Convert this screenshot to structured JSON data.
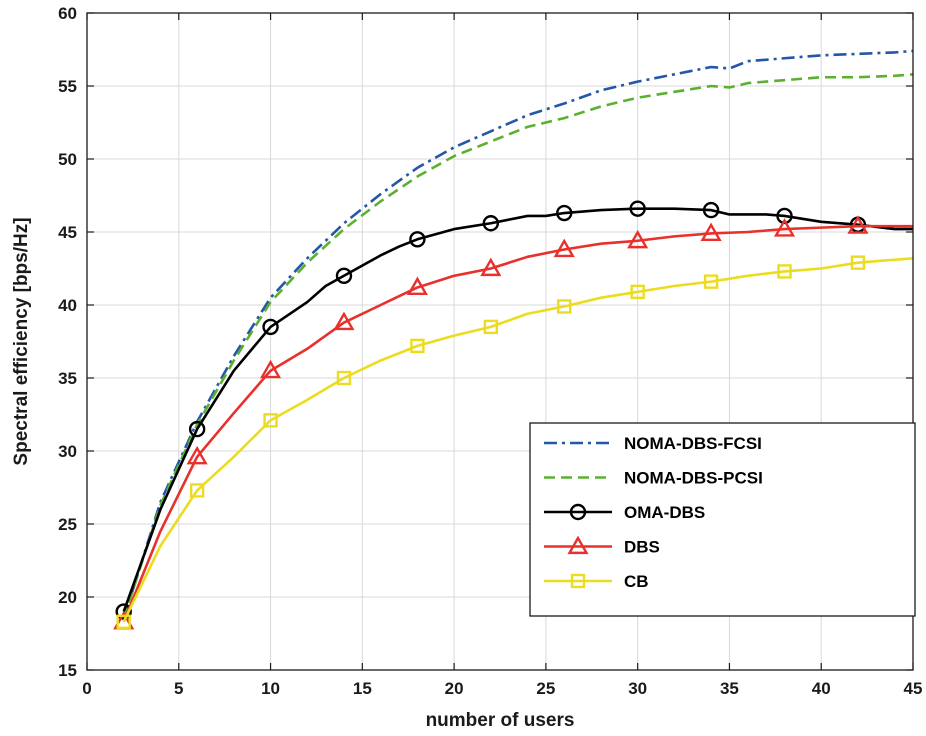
{
  "chart_data": {
    "type": "line",
    "xlabel": "number of users",
    "ylabel": "Spectral efficiency [bps/Hz]",
    "xlim": [
      0,
      45
    ],
    "ylim": [
      15,
      60
    ],
    "xticks": [
      0,
      5,
      10,
      15,
      20,
      25,
      30,
      35,
      40,
      45
    ],
    "yticks": [
      15,
      20,
      25,
      30,
      35,
      40,
      45,
      50,
      55,
      60
    ],
    "grid": true,
    "legend_position": "lower-right",
    "series": [
      {
        "name": "NOMA-DBS-FCSI",
        "color": "#2457a6",
        "dash": "dashdot",
        "marker": "none",
        "x": [
          2,
          4,
          6,
          8,
          10,
          12,
          14,
          16,
          18,
          20,
          22,
          24,
          26,
          28,
          30,
          32,
          34,
          35,
          36,
          38,
          40,
          42,
          44,
          45
        ],
        "y": [
          18.5,
          26.5,
          32.0,
          36.5,
          40.5,
          43.2,
          45.6,
          47.6,
          49.4,
          50.8,
          51.9,
          53.0,
          53.8,
          54.7,
          55.3,
          55.8,
          56.3,
          56.2,
          56.7,
          56.9,
          57.1,
          57.2,
          57.3,
          57.4
        ]
      },
      {
        "name": "NOMA-DBS-PCSI",
        "color": "#5cb030",
        "dash": "dash",
        "marker": "none",
        "x": [
          2,
          4,
          6,
          8,
          10,
          12,
          14,
          16,
          18,
          20,
          22,
          24,
          26,
          28,
          30,
          32,
          34,
          35,
          36,
          38,
          40,
          42,
          44,
          45
        ],
        "y": [
          18.5,
          26.3,
          31.8,
          36.2,
          40.2,
          42.9,
          45.2,
          47.1,
          48.8,
          50.2,
          51.2,
          52.2,
          52.8,
          53.6,
          54.2,
          54.6,
          55.0,
          54.9,
          55.2,
          55.4,
          55.6,
          55.6,
          55.7,
          55.8
        ]
      },
      {
        "name": "OMA-DBS",
        "color": "#000000",
        "dash": "solid",
        "marker": "circle",
        "x": [
          2,
          4,
          6,
          8,
          10,
          12,
          13,
          14,
          16,
          17,
          18,
          20,
          22,
          24,
          25,
          26,
          28,
          30,
          32,
          34,
          35,
          36,
          37,
          38,
          40,
          42,
          44,
          45
        ],
        "y": [
          19.0,
          26.0,
          31.5,
          35.5,
          38.5,
          40.2,
          41.3,
          42.0,
          43.4,
          44.0,
          44.5,
          45.2,
          45.6,
          46.1,
          46.1,
          46.3,
          46.5,
          46.6,
          46.6,
          46.5,
          46.2,
          46.2,
          46.2,
          46.1,
          45.7,
          45.5,
          45.2,
          45.2
        ],
        "marker_x": [
          2,
          6,
          10,
          14,
          18,
          22,
          26,
          30,
          34,
          38,
          42
        ]
      },
      {
        "name": "DBS",
        "color": "#e8302c",
        "dash": "solid",
        "marker": "triangle",
        "x": [
          2,
          4,
          6,
          8,
          10,
          12,
          14,
          16,
          18,
          20,
          22,
          24,
          26,
          28,
          30,
          32,
          34,
          36,
          38,
          40,
          42,
          44,
          45
        ],
        "y": [
          18.3,
          24.5,
          29.6,
          32.6,
          35.5,
          37.0,
          38.8,
          40.0,
          41.2,
          42.0,
          42.5,
          43.3,
          43.8,
          44.2,
          44.4,
          44.7,
          44.9,
          45.0,
          45.2,
          45.3,
          45.4,
          45.4,
          45.4
        ],
        "marker_x": [
          2,
          6,
          10,
          14,
          18,
          22,
          26,
          30,
          34,
          38,
          42
        ]
      },
      {
        "name": "CB",
        "color": "#ecdc1f",
        "dash": "solid",
        "marker": "square",
        "x": [
          2,
          4,
          6,
          8,
          10,
          12,
          14,
          16,
          18,
          20,
          22,
          24,
          26,
          28,
          30,
          32,
          34,
          36,
          38,
          40,
          42,
          44,
          45
        ],
        "y": [
          18.3,
          23.5,
          27.3,
          29.6,
          32.1,
          33.5,
          35.0,
          36.2,
          37.2,
          37.9,
          38.5,
          39.4,
          39.9,
          40.5,
          40.9,
          41.3,
          41.6,
          42.0,
          42.3,
          42.5,
          42.9,
          43.1,
          43.2
        ],
        "marker_x": [
          2,
          6,
          10,
          14,
          18,
          22,
          26,
          30,
          34,
          38,
          42
        ]
      }
    ]
  }
}
